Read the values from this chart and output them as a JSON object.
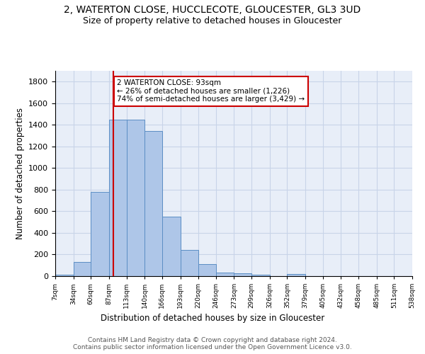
{
  "title": "2, WATERTON CLOSE, HUCCLECOTE, GLOUCESTER, GL3 3UD",
  "subtitle": "Size of property relative to detached houses in Gloucester",
  "xlabel": "Distribution of detached houses by size in Gloucester",
  "ylabel": "Number of detached properties",
  "bar_heights": [
    15,
    130,
    780,
    1450,
    1450,
    1340,
    550,
    245,
    110,
    30,
    25,
    15,
    0,
    20,
    0,
    0,
    0,
    0,
    0,
    0
  ],
  "bin_edges": [
    7,
    34,
    60,
    87,
    113,
    140,
    166,
    193,
    220,
    246,
    273,
    299,
    326,
    352,
    379,
    405,
    432,
    458,
    485,
    511,
    538
  ],
  "tick_labels": [
    "7sqm",
    "34sqm",
    "60sqm",
    "87sqm",
    "113sqm",
    "140sqm",
    "166sqm",
    "193sqm",
    "220sqm",
    "246sqm",
    "273sqm",
    "299sqm",
    "326sqm",
    "352sqm",
    "379sqm",
    "405sqm",
    "432sqm",
    "458sqm",
    "485sqm",
    "511sqm",
    "538sqm"
  ],
  "bar_color": "#aec6e8",
  "bar_edge_color": "#5b8ec4",
  "vline_x": 93,
  "vline_color": "#cc0000",
  "annotation_text": "2 WATERTON CLOSE: 93sqm\n← 26% of detached houses are smaller (1,226)\n74% of semi-detached houses are larger (3,429) →",
  "annotation_box_color": "#ffffff",
  "annotation_box_edge": "#cc0000",
  "ylim": [
    0,
    1900
  ],
  "yticks": [
    0,
    200,
    400,
    600,
    800,
    1000,
    1200,
    1400,
    1600,
    1800
  ],
  "grid_color": "#c8d4e8",
  "bg_color": "#e8eef8",
  "footer_text": "Contains HM Land Registry data © Crown copyright and database right 2024.\nContains public sector information licensed under the Open Government Licence v3.0.",
  "title_fontsize": 10,
  "subtitle_fontsize": 9,
  "ylabel_fontsize": 8.5,
  "xlabel_fontsize": 8.5,
  "footer_fontsize": 6.5
}
